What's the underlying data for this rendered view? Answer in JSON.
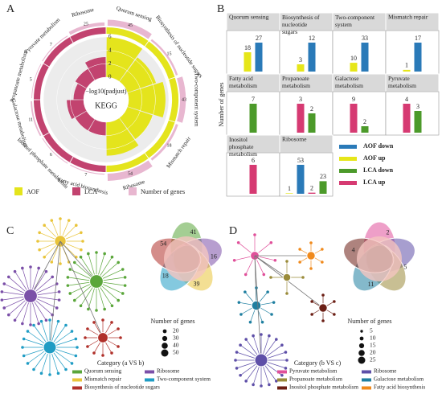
{
  "panels": [
    "A",
    "B",
    "C",
    "D"
  ],
  "chart_data": [
    {
      "type": "circos",
      "center_label": "KEGG",
      "axis_label": "−log10(padjust)",
      "ylim": [
        0,
        6
      ],
      "yticks": [
        0,
        2,
        4,
        6
      ],
      "categories": [
        "Quorum sensing",
        "Biosynthesis of nucleotide sugars",
        "Two-component system",
        "Mismatch repair",
        "Ribosome",
        "Fatty acid biosynthesis",
        "Inositol phosphate metabolism",
        "Galactose metabolism",
        "Propanoate metabolism",
        "Pyruvate metabolism",
        "Ribosome"
      ],
      "series": [
        {
          "name": "AOF",
          "color": "#e4e41c",
          "values": [
            6,
            4.5,
            5.5,
            4,
            5,
            null,
            null,
            null,
            null,
            null,
            null
          ]
        },
        {
          "name": "LCA",
          "color": "#c2436f",
          "values": [
            null,
            null,
            null,
            null,
            null,
            2,
            2,
            2.5,
            1.5,
            2,
            3
          ]
        }
      ],
      "genes": {
        "name": "Number of genes",
        "color": "#e8b7d0",
        "values": [
          45,
          15,
          43,
          18,
          54,
          7,
          6,
          11,
          5,
          7,
          25
        ]
      }
    },
    {
      "type": "bar_facets",
      "ylabel": "Number of genes",
      "categories": [
        "Quorum sensing",
        "Biosynthesis of nucleotide sugars",
        "Two-component system",
        "Mismatch repair",
        "Fatty acid metabolism",
        "Propanoate metabolism",
        "Galactose metabolism",
        "Pyruvate metabolism",
        "Inositol phosphate metabolism",
        "Ribosome"
      ],
      "series": [
        {
          "name": "AOF down",
          "color": "#2a7ab8",
          "values": [
            27,
            12,
            33,
            17,
            null,
            null,
            null,
            null,
            null,
            53
          ]
        },
        {
          "name": "AOF up",
          "color": "#e6e619",
          "values": [
            18,
            3,
            10,
            1,
            null,
            null,
            null,
            null,
            null,
            1
          ]
        },
        {
          "name": "LCA down",
          "color": "#4c9a2a",
          "values": [
            null,
            null,
            null,
            null,
            7,
            2,
            2,
            3,
            null,
            23
          ]
        },
        {
          "name": "LCA up",
          "color": "#d63a72",
          "values": [
            null,
            null,
            null,
            null,
            null,
            3,
            9,
            4,
            6,
            2
          ]
        }
      ]
    },
    {
      "type": "network",
      "venn_labels": [
        41,
        16,
        39,
        18,
        54
      ],
      "size_title": "Number of genes",
      "size_ticks": [
        20,
        30,
        40,
        50
      ],
      "legend_title": "Category (a VS b)",
      "categories": [
        "Quorum sensing",
        "Ribosome",
        "Mismatch repair",
        "Two-component system",
        "Biosynthesis of nucleotide sugars"
      ],
      "colors": [
        "#5aa63a",
        "#7b4fa8",
        "#e9c43a",
        "#1f9cc4",
        "#b0302a"
      ]
    },
    {
      "type": "network",
      "venn_labels": [
        2,
        5,
        11,
        4
      ],
      "size_title": "Number of genes",
      "size_ticks": [
        5,
        10,
        15,
        20,
        25
      ],
      "legend_title": "Category (b VS c)",
      "categories": [
        "Pyruvate metabolism",
        "Ribosome",
        "Propanoate metabolism",
        "Galactose metabolism",
        "Inositol phosphate metabolism",
        "Fatty acid biosynthesis"
      ],
      "colors": [
        "#e0509a",
        "#5e4fa8",
        "#9a8b3a",
        "#1f7fa0",
        "#6b1e14",
        "#f08a1c"
      ]
    }
  ]
}
